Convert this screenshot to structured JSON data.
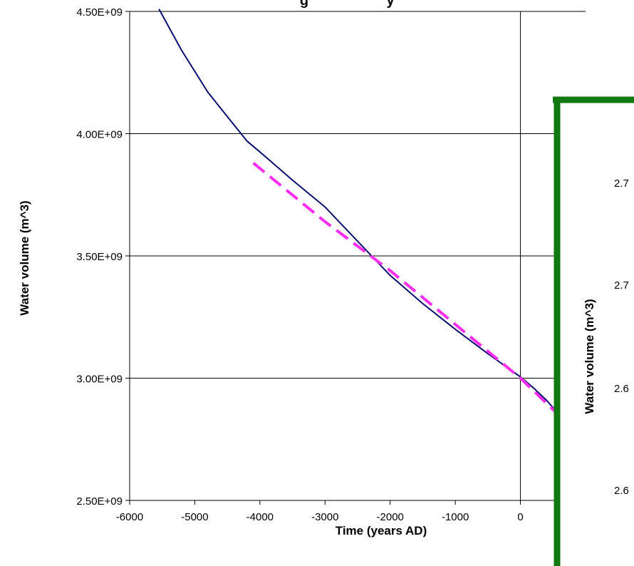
{
  "chart_data": [
    {
      "type": "line",
      "title": "g",
      "title_right": "y",
      "xlabel": "Time (years AD)",
      "ylabel": "Water volume (m^3)",
      "xlim": [
        -6000,
        1000
      ],
      "ylim": [
        2500000000,
        4500000000
      ],
      "grid": true,
      "x_ticks": [
        -6000,
        -5000,
        -4000,
        -3000,
        -2000,
        -1000,
        0
      ],
      "x_tick_labels": [
        "-6000",
        "-5000",
        "-4000",
        "-3000",
        "-2000",
        "-1000",
        "0"
      ],
      "y_ticks": [
        2500000000,
        3000000000,
        3500000000,
        4000000000,
        4500000000
      ],
      "y_tick_labels": [
        "2.50E+09",
        "3.00E+09",
        "3.50E+09",
        "4.00E+09",
        "4.50E+09"
      ],
      "colors": {
        "series_solid": "#0b1070",
        "series_dashed": "#ff2df0",
        "inset_border": "#107a10"
      },
      "series": [
        {
          "style": "solid",
          "x": [
            -5550,
            -5200,
            -4800,
            -4500,
            -4200,
            -4000,
            -3500,
            -3000,
            -2500,
            -2000,
            -1500,
            -1000,
            -500,
            0,
            200,
            400,
            600,
            700
          ],
          "y": [
            4510000000,
            4340000000,
            4170000000,
            4070000000,
            3970000000,
            3925000000,
            3810000000,
            3700000000,
            3560000000,
            3420000000,
            3305000000,
            3200000000,
            3100000000,
            3005000000,
            2960000000,
            2910000000,
            2850000000,
            2820000000
          ]
        },
        {
          "style": "dashed",
          "x": [
            -4100,
            -3000,
            -2000,
            -1000,
            0,
            700
          ],
          "y": [
            3880000000,
            3640000000,
            3440000000,
            3220000000,
            3000000000,
            2820000000
          ]
        }
      ]
    },
    {
      "type": "line",
      "ylabel": "Water volume (m^3)",
      "y_tick_labels_partial": [
        "2.7",
        "2.7",
        "2.6",
        "2.6"
      ]
    }
  ]
}
